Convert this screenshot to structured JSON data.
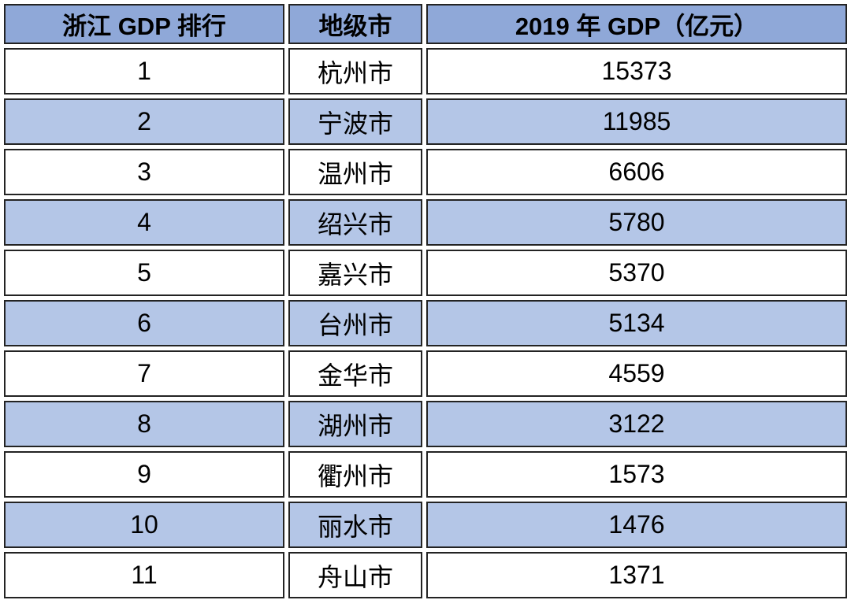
{
  "table": {
    "title": "浙江 GDP 排行",
    "columns": [
      {
        "key": "rank",
        "label": "浙江 GDP 排行"
      },
      {
        "key": "city",
        "label": "地级市"
      },
      {
        "key": "gdp",
        "label": "2019 年 GDP（亿元）"
      }
    ],
    "rows": [
      {
        "rank": "1",
        "city": "杭州市",
        "gdp": "15373"
      },
      {
        "rank": "2",
        "city": "宁波市",
        "gdp": "11985"
      },
      {
        "rank": "3",
        "city": "温州市",
        "gdp": "6606"
      },
      {
        "rank": "4",
        "city": "绍兴市",
        "gdp": "5780"
      },
      {
        "rank": "5",
        "city": "嘉兴市",
        "gdp": "5370"
      },
      {
        "rank": "6",
        "city": "台州市",
        "gdp": "5134"
      },
      {
        "rank": "7",
        "city": "金华市",
        "gdp": "4559"
      },
      {
        "rank": "8",
        "city": "湖州市",
        "gdp": "3122"
      },
      {
        "rank": "9",
        "city": "衢州市",
        "gdp": "1573"
      },
      {
        "rank": "10",
        "city": "丽水市",
        "gdp": "1476"
      },
      {
        "rank": "11",
        "city": "舟山市",
        "gdp": "1371"
      }
    ],
    "colors": {
      "header_bg": "#8fa8d8",
      "row_alt_bg": "#b4c6e7",
      "row_bg": "#ffffff",
      "border": "#232323",
      "text": "#000000"
    }
  },
  "chart_data": {
    "type": "table",
    "title": "浙江 GDP 排行",
    "columns": [
      "浙江 GDP 排行",
      "地级市",
      "2019 年 GDP（亿元）"
    ],
    "categories": [
      "杭州市",
      "宁波市",
      "温州市",
      "绍兴市",
      "嘉兴市",
      "台州市",
      "金华市",
      "湖州市",
      "衢州市",
      "丽水市",
      "舟山市"
    ],
    "series": [
      {
        "name": "排行",
        "values": [
          1,
          2,
          3,
          4,
          5,
          6,
          7,
          8,
          9,
          10,
          11
        ]
      },
      {
        "name": "2019 年 GDP（亿元）",
        "values": [
          15373,
          11985,
          6606,
          5780,
          5370,
          5134,
          4559,
          3122,
          1573,
          1476,
          1371
        ]
      }
    ],
    "xlabel": "地级市",
    "ylabel": "2019 年 GDP（亿元）",
    "legend_position": "none",
    "grid": false
  }
}
